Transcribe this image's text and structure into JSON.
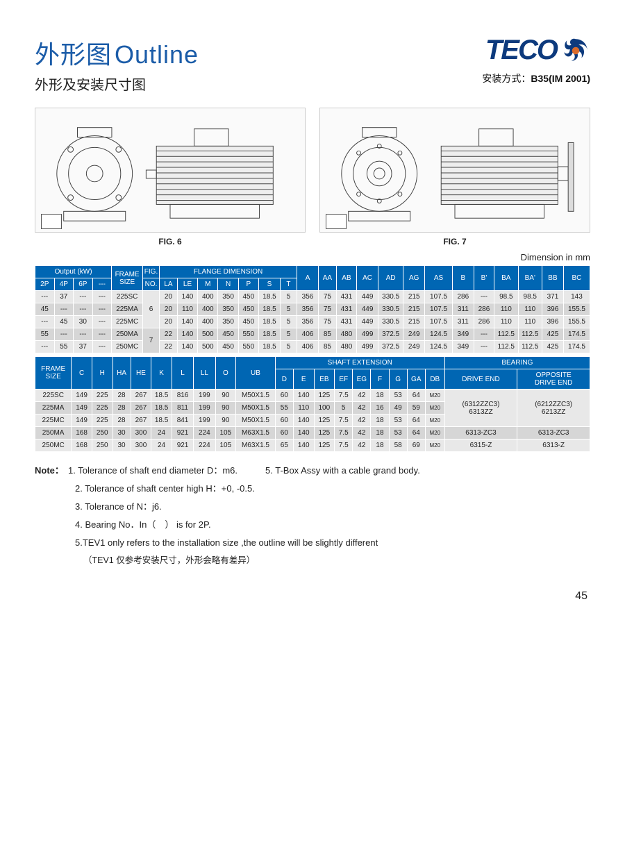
{
  "header": {
    "title_cn": "外形图",
    "title_en": "Outline",
    "subtitle": "外形及安装尺寸图",
    "mount_label": "安装方式：",
    "mount_value": "B35(IM 2001)",
    "logo_text": "TECO"
  },
  "figures": {
    "fig6_caption": "FIG. 6",
    "fig7_caption": "FIG. 7"
  },
  "dim_unit": "Dimension in mm",
  "colors": {
    "header_blue": "#0066b3",
    "title_blue": "#1b5ca8",
    "logo_blue": "#0d3a7d",
    "logo_accent": "#d96b2c",
    "row_bg": "#e8e8e8",
    "row_alt_bg": "#d6d6d6"
  },
  "table1": {
    "group_headers": {
      "output": "Output (kW)",
      "frame": "FRAME\nSIZE",
      "fig": "FIG.",
      "flange": "FLANGE DIMENSION"
    },
    "sub_headers": [
      "2P",
      "4P",
      "6P",
      "---",
      "",
      "NO.",
      "LA",
      "LE",
      "M",
      "N",
      "P",
      "S",
      "T",
      "A",
      "AA",
      "AB",
      "AC",
      "AD",
      "AG",
      "AS",
      "B",
      "B'",
      "BA",
      "BA'",
      "BB",
      "BC"
    ],
    "rows": [
      [
        "---",
        "37",
        "---",
        "---",
        "225SC",
        "",
        "20",
        "140",
        "400",
        "350",
        "450",
        "18.5",
        "5",
        "356",
        "75",
        "431",
        "449",
        "330.5",
        "215",
        "107.5",
        "286",
        "---",
        "98.5",
        "98.5",
        "371",
        "143"
      ],
      [
        "45",
        "---",
        "---",
        "---",
        "225MA",
        "6",
        "20",
        "110",
        "400",
        "350",
        "450",
        "18.5",
        "5",
        "356",
        "75",
        "431",
        "449",
        "330.5",
        "215",
        "107.5",
        "311",
        "286",
        "110",
        "110",
        "396",
        "155.5"
      ],
      [
        "---",
        "45",
        "30",
        "---",
        "225MC",
        "",
        "20",
        "140",
        "400",
        "350",
        "450",
        "18.5",
        "5",
        "356",
        "75",
        "431",
        "449",
        "330.5",
        "215",
        "107.5",
        "311",
        "286",
        "110",
        "110",
        "396",
        "155.5"
      ],
      [
        "55",
        "---",
        "---",
        "---",
        "250MA",
        "7",
        "22",
        "140",
        "500",
        "450",
        "550",
        "18.5",
        "5",
        "406",
        "85",
        "480",
        "499",
        "372.5",
        "249",
        "124.5",
        "349",
        "---",
        "112.5",
        "112.5",
        "425",
        "174.5"
      ],
      [
        "---",
        "55",
        "37",
        "---",
        "250MC",
        "",
        "22",
        "140",
        "500",
        "450",
        "550",
        "18.5",
        "5",
        "406",
        "85",
        "480",
        "499",
        "372.5",
        "249",
        "124.5",
        "349",
        "---",
        "112.5",
        "112.5",
        "425",
        "174.5"
      ]
    ]
  },
  "table2": {
    "group_headers": {
      "frame": "FRAME\nSIZE",
      "shaft": "SHAFT EXTENSION",
      "bearing": "BEARING"
    },
    "sub_headers1": [
      "",
      "C",
      "H",
      "HA",
      "HE",
      "K",
      "L",
      "LL",
      "O",
      "UB",
      "D",
      "E",
      "EB",
      "EF",
      "EG",
      "F",
      "G",
      "GA",
      "DB",
      "DRIVE END",
      "OPPOSITE\nDRIVE END"
    ],
    "rows": [
      [
        "225SC",
        "149",
        "225",
        "28",
        "267",
        "18.5",
        "816",
        "199",
        "90",
        "M50X1.5",
        "60",
        "140",
        "125",
        "7.5",
        "42",
        "18",
        "53",
        "64",
        "M20",
        "(6312ZZC3)\n6313ZZ",
        "(6212ZZC3)\n6213ZZ"
      ],
      [
        "225MA",
        "149",
        "225",
        "28",
        "267",
        "18.5",
        "811",
        "199",
        "90",
        "M50X1.5",
        "55",
        "110",
        "100",
        "5",
        "42",
        "16",
        "49",
        "59",
        "M20",
        "",
        ""
      ],
      [
        "225MC",
        "149",
        "225",
        "28",
        "267",
        "18.5",
        "841",
        "199",
        "90",
        "M50X1.5",
        "60",
        "140",
        "125",
        "7.5",
        "42",
        "18",
        "53",
        "64",
        "M20",
        "",
        ""
      ],
      [
        "250MA",
        "168",
        "250",
        "30",
        "300",
        "24",
        "921",
        "224",
        "105",
        "M63X1.5",
        "60",
        "140",
        "125",
        "7.5",
        "42",
        "18",
        "53",
        "64",
        "M20",
        "6313-ZC3",
        "6313-ZC3"
      ],
      [
        "250MC",
        "168",
        "250",
        "30",
        "300",
        "24",
        "921",
        "224",
        "105",
        "M63X1.5",
        "65",
        "140",
        "125",
        "7.5",
        "42",
        "18",
        "58",
        "69",
        "M20",
        "6315-Z",
        "6313-Z"
      ]
    ]
  },
  "notes": {
    "label": "Note：",
    "n1": "1. Tolerance of shaft end diameter D：m6.",
    "n5_inline": "5. T-Box Assy with a cable grand body.",
    "n2": "2. Tolerance of shaft center high H：+0, -0.5.",
    "n3": "3. Tolerance of N：j6.",
    "n4": "4. Bearing No．In（　） is for 2P.",
    "n5b": "5.TEV1 only refers to the installation size ,the outline will be slightly different",
    "n5b_sub": "（TEV1 仅参考安装尺寸，外形会略有差异）"
  },
  "page_number": "45"
}
